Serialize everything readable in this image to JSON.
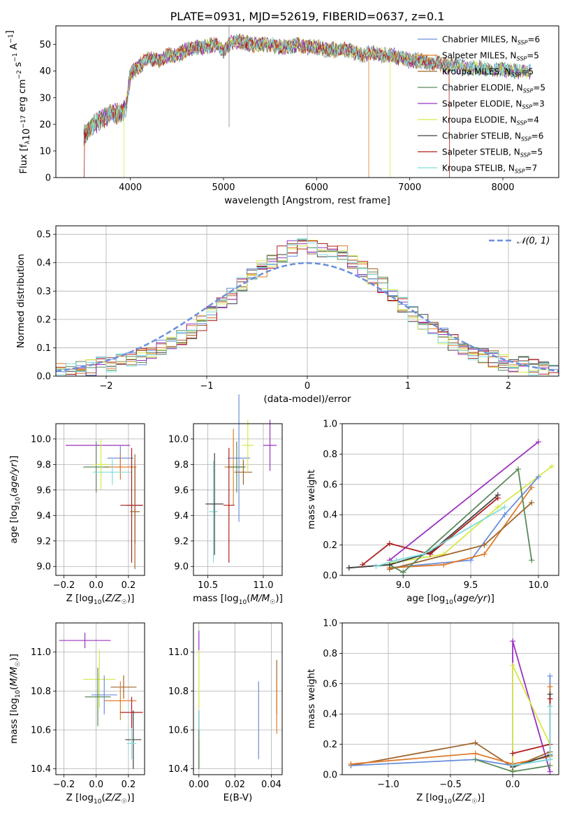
{
  "figure": {
    "title": "PLATE=0931, MJD=52619, FIBERID=0637, z=0.1"
  },
  "chart_data": [
    {
      "id": "spectrum",
      "type": "line",
      "xlabel": "wavelength [Angstrom, rest frame]",
      "ylabel": "Flux [f_λ 10^-17 erg cm^-2 s^-1 A^-1]",
      "xlim": [
        3200,
        8600
      ],
      "ylim": [
        0,
        57
      ],
      "xticks": [
        4000,
        5000,
        6000,
        7000,
        8000
      ],
      "yticks": [
        0,
        10,
        20,
        30,
        40,
        50
      ],
      "grid": false,
      "legend_position": "top-right",
      "x": [
        3500,
        3600,
        3700,
        3800,
        3900,
        3950,
        4000,
        4100,
        4200,
        4300,
        4400,
        4500,
        4600,
        4700,
        4800,
        4900,
        5000,
        5100,
        5200,
        5300,
        5400,
        5500,
        5600,
        5700,
        5800,
        5900,
        6000,
        6100,
        6200,
        6300,
        6400,
        6500,
        6600,
        6700,
        6800,
        6900,
        7000,
        7100,
        7200,
        7300,
        7400,
        7500,
        7600,
        7700,
        7800,
        7900,
        8000,
        8100,
        8200,
        8300
      ],
      "continuum": [
        16,
        20,
        22,
        24,
        24,
        26,
        39,
        42,
        45,
        44,
        46,
        46,
        48,
        49,
        49,
        50,
        48,
        51,
        51,
        50,
        50,
        50,
        49,
        49,
        50,
        49,
        49,
        48,
        48,
        48,
        47,
        46,
        47,
        46,
        46,
        45,
        44,
        44,
        43,
        43,
        42,
        42,
        41,
        41,
        41,
        40,
        41,
        40,
        40,
        40
      ],
      "series": [
        {
          "name": "Chabrier MILES, N_SSP=6",
          "color": "#6a8fdc"
        },
        {
          "name": "Salpeter MILES, N_SSP=5",
          "color": "#e07b2a"
        },
        {
          "name": "Kroupa MILES, N_SSP=5",
          "color": "#a0642a"
        },
        {
          "name": "Chabrier ELODIE, N_SSP=5",
          "color": "#5a8a5a"
        },
        {
          "name": "Salpeter ELODIE, N_SSP=3",
          "color": "#9b30c0"
        },
        {
          "name": "Kroupa ELODIE, N_SSP=4",
          "color": "#d6e84a"
        },
        {
          "name": "Chabrier STELIB, N_SSP=6",
          "color": "#404040"
        },
        {
          "name": "Salpeter STELIB, N_SSP=5",
          "color": "#b01e1e"
        },
        {
          "name": "Kroupa STELIB, N_SSP=7",
          "color": "#7fdcdc"
        }
      ]
    },
    {
      "id": "residuals",
      "type": "line",
      "xlabel": "(data-model)/error",
      "ylabel": "Normed distribution",
      "xlim": [
        -2.5,
        2.5
      ],
      "ylim": [
        0,
        0.53
      ],
      "xticks": [
        -2,
        -1,
        0,
        1,
        2
      ],
      "yticks": [
        0.0,
        0.1,
        0.2,
        0.3,
        0.4,
        0.5
      ],
      "grid": true,
      "legend_position": "top-right",
      "gaussian_label": "𝒩(0, 1)",
      "bin_edges": [
        -2.5,
        -2.4,
        -2.3,
        -2.2,
        -2.1,
        -2.0,
        -1.9,
        -1.8,
        -1.7,
        -1.6,
        -1.5,
        -1.4,
        -1.3,
        -1.2,
        -1.1,
        -1.0,
        -0.9,
        -0.8,
        -0.7,
        -0.6,
        -0.5,
        -0.4,
        -0.3,
        -0.2,
        -0.1,
        0.0,
        0.1,
        0.2,
        0.3,
        0.4,
        0.5,
        0.6,
        0.7,
        0.8,
        0.9,
        1.0,
        1.1,
        1.2,
        1.3,
        1.4,
        1.5,
        1.6,
        1.7,
        1.8,
        1.9,
        2.0,
        2.1,
        2.2,
        2.3,
        2.4,
        2.5
      ],
      "histogram": [
        0.02,
        0.02,
        0.03,
        0.03,
        0.04,
        0.04,
        0.05,
        0.06,
        0.07,
        0.08,
        0.1,
        0.12,
        0.14,
        0.16,
        0.19,
        0.22,
        0.25,
        0.28,
        0.32,
        0.36,
        0.38,
        0.41,
        0.43,
        0.45,
        0.46,
        0.46,
        0.45,
        0.44,
        0.43,
        0.41,
        0.38,
        0.35,
        0.32,
        0.28,
        0.25,
        0.22,
        0.19,
        0.16,
        0.14,
        0.12,
        0.1,
        0.08,
        0.07,
        0.06,
        0.05,
        0.04,
        0.04,
        0.03,
        0.02,
        0.02
      ]
    },
    {
      "id": "age-vs-Z",
      "type": "scatter",
      "xlabel": "Z [log10(Z/Z☉)]",
      "ylabel": "age [log10(age/yr)]",
      "xlim": [
        -0.25,
        0.3
      ],
      "ylim": [
        8.93,
        10.12
      ],
      "xticks": [
        -0.2,
        0.0,
        0.2
      ],
      "yticks": [
        9.0,
        9.2,
        9.4,
        9.6,
        9.8,
        10.0
      ],
      "grid": true,
      "points": [
        {
          "x": 0.01,
          "y": 9.95,
          "xerr": 0.2,
          "yerr": 0.0,
          "series": 4
        },
        {
          "x": 0.15,
          "y": 9.85,
          "xerr": 0.08,
          "yerr": 0.1,
          "series": 0
        },
        {
          "x": 0.15,
          "y": 9.78,
          "xerr": 0.1,
          "yerr": 0.1,
          "series": 1
        },
        {
          "x": 0.0,
          "y": 9.78,
          "xerr": 0.08,
          "yerr": 0.2,
          "series": 3
        },
        {
          "x": 0.03,
          "y": 9.8,
          "xerr": 0.05,
          "yerr": 0.2,
          "series": 5
        },
        {
          "x": 0.1,
          "y": 9.74,
          "xerr": 0.12,
          "yerr": 0.1,
          "series": 8
        },
        {
          "x": 0.24,
          "y": 9.48,
          "xerr": 0.05,
          "yerr": 0.3,
          "series": 6
        },
        {
          "x": 0.22,
          "y": 9.48,
          "xerr": 0.07,
          "yerr": 0.45,
          "series": 7
        },
        {
          "x": 0.24,
          "y": 9.43,
          "xerr": 0.03,
          "yerr": 0.45,
          "series": 2
        }
      ]
    },
    {
      "id": "age-vs-mass",
      "type": "scatter",
      "xlabel": "mass [log10(M/M☉)]",
      "ylabel": "",
      "xlim": [
        10.37,
        11.17
      ],
      "ylim": [
        8.93,
        10.12
      ],
      "xticks": [
        10.5,
        11.0
      ],
      "yticks": [
        9.0,
        9.2,
        9.4,
        9.6,
        9.8,
        10.0
      ],
      "grid": true,
      "points": [
        {
          "x": 11.06,
          "y": 9.95,
          "xerr": 0.06,
          "yerr": 0.2,
          "series": 4
        },
        {
          "x": 10.78,
          "y": 9.85,
          "xerr": 0.1,
          "yerr": 0.5,
          "series": 0
        },
        {
          "x": 10.73,
          "y": 9.78,
          "xerr": 0.08,
          "yerr": 0.3,
          "series": 1
        },
        {
          "x": 10.76,
          "y": 9.78,
          "xerr": 0.08,
          "yerr": 0.2,
          "series": 3
        },
        {
          "x": 10.86,
          "y": 9.95,
          "xerr": 0.05,
          "yerr": 0.2,
          "series": 5
        },
        {
          "x": 10.55,
          "y": 9.43,
          "xerr": 0.04,
          "yerr": 0.4,
          "series": 8
        },
        {
          "x": 10.56,
          "y": 9.49,
          "xerr": 0.08,
          "yerr": 0.4,
          "series": 6
        },
        {
          "x": 10.69,
          "y": 9.48,
          "xerr": 0.05,
          "yerr": 0.45,
          "series": 7
        },
        {
          "x": 10.82,
          "y": 9.74,
          "xerr": 0.08,
          "yerr": 0.1,
          "series": 2
        }
      ]
    },
    {
      "id": "mass-weight-vs-age",
      "type": "line",
      "xlabel": "age [log10(age/yr)]",
      "ylabel": "mass weight",
      "xlim": [
        8.55,
        10.15
      ],
      "ylim": [
        0,
        1.0
      ],
      "xticks": [
        9.0,
        9.5,
        10.0
      ],
      "yticks": [
        0.0,
        0.2,
        0.4,
        0.6,
        0.8,
        1.0
      ],
      "grid": true,
      "series": [
        {
          "series": 4,
          "x": [
            8.9,
            10.0
          ],
          "y": [
            0.1,
            0.88
          ]
        },
        {
          "series": 5,
          "x": [
            8.9,
            9.3,
            9.7,
            10.1
          ],
          "y": [
            0.08,
            0.14,
            0.45,
            0.72
          ]
        },
        {
          "series": 0,
          "x": [
            8.9,
            9.5,
            9.75,
            10.0
          ],
          "y": [
            0.05,
            0.1,
            0.4,
            0.65
          ]
        },
        {
          "series": 1,
          "x": [
            8.9,
            9.3,
            9.6,
            9.95
          ],
          "y": [
            0.05,
            0.07,
            0.14,
            0.58
          ]
        },
        {
          "series": 2,
          "x": [
            8.9,
            9.6,
            9.95
          ],
          "y": [
            0.04,
            0.2,
            0.48
          ]
        },
        {
          "series": 3,
          "x": [
            8.6,
            8.9,
            9.0,
            9.85,
            9.95
          ],
          "y": [
            0.05,
            0.07,
            0.02,
            0.7,
            0.1
          ]
        },
        {
          "series": 6,
          "x": [
            8.6,
            8.9,
            9.2,
            9.7
          ],
          "y": [
            0.05,
            0.07,
            0.15,
            0.53
          ]
        },
        {
          "series": 7,
          "x": [
            8.7,
            8.9,
            9.2,
            9.7
          ],
          "y": [
            0.07,
            0.21,
            0.14,
            0.51
          ]
        },
        {
          "series": 8,
          "x": [
            8.8,
            8.95,
            9.15,
            9.75
          ],
          "y": [
            0.06,
            0.1,
            0.14,
            0.45
          ]
        }
      ]
    },
    {
      "id": "mass-vs-Z",
      "type": "scatter",
      "xlabel": "Z [log10(Z/Z☉)]",
      "ylabel": "mass [log10(M/M☉)]",
      "xlim": [
        -0.25,
        0.3
      ],
      "ylim": [
        10.37,
        11.15
      ],
      "xticks": [
        -0.2,
        0.0,
        0.2
      ],
      "yticks": [
        10.4,
        10.6,
        10.8,
        11.0
      ],
      "grid": true,
      "points": [
        {
          "x": -0.07,
          "y": 11.06,
          "xerr": 0.16,
          "yerr": 0.04,
          "series": 4
        },
        {
          "x": 0.02,
          "y": 10.86,
          "xerr": 0.1,
          "yerr": 0.15,
          "series": 5
        },
        {
          "x": 0.17,
          "y": 10.82,
          "xerr": 0.08,
          "yerr": 0.06,
          "series": 2
        },
        {
          "x": 0.05,
          "y": 10.78,
          "xerr": 0.08,
          "yerr": 0.1,
          "series": 0
        },
        {
          "x": 0.01,
          "y": 10.77,
          "xerr": 0.08,
          "yerr": 0.15,
          "series": 3
        },
        {
          "x": 0.15,
          "y": 10.75,
          "xerr": 0.1,
          "yerr": 0.1,
          "series": 1
        },
        {
          "x": 0.22,
          "y": 10.69,
          "xerr": 0.07,
          "yerr": 0.08,
          "series": 7
        },
        {
          "x": 0.23,
          "y": 10.55,
          "xerr": 0.05,
          "yerr": 0.15,
          "series": 6
        },
        {
          "x": 0.22,
          "y": 10.53,
          "xerr": 0.03,
          "yerr": 0.08,
          "series": 8
        }
      ]
    },
    {
      "id": "mass-vs-EBV",
      "type": "scatter",
      "xlabel": "E(B-V)",
      "ylabel": "",
      "xlim": [
        -0.003,
        0.046
      ],
      "ylim": [
        10.37,
        11.15
      ],
      "xticks": [
        0.0,
        0.02,
        0.04
      ],
      "yticks": [
        10.4,
        10.6,
        10.8,
        11.0
      ],
      "grid": true,
      "points": [
        {
          "x": 0.0,
          "y": 11.06,
          "xerr": 0.0,
          "yerr": 0.05,
          "series": 4
        },
        {
          "x": 0.0,
          "y": 10.86,
          "xerr": 0.0,
          "yerr": 0.15,
          "series": 5
        },
        {
          "x": 0.0,
          "y": 10.55,
          "xerr": 0.0,
          "yerr": 0.15,
          "series": 6
        },
        {
          "x": 0.0,
          "y": 10.62,
          "xerr": 0.0,
          "yerr": 0.08,
          "series": 8
        },
        {
          "x": 0.0,
          "y": 10.5,
          "xerr": 0.0,
          "yerr": 0.1,
          "series": 3
        },
        {
          "x": 0.033,
          "y": 10.65,
          "xerr": 0.0,
          "yerr": 0.2,
          "series": 0
        },
        {
          "x": 0.043,
          "y": 10.82,
          "xerr": 0.0,
          "yerr": 0.14,
          "series": 2
        },
        {
          "x": 0.043,
          "y": 10.72,
          "xerr": 0.0,
          "yerr": 0.14,
          "series": 1
        }
      ]
    },
    {
      "id": "mass-weight-vs-Z",
      "type": "line",
      "xlabel": "Z [log10(Z/Z☉)]",
      "ylabel": "mass weight",
      "xlim": [
        -1.37,
        0.37
      ],
      "ylim": [
        0,
        1.0
      ],
      "xticks": [
        -1.0,
        -0.5,
        0.0
      ],
      "yticks": [
        0.0,
        0.2,
        0.4,
        0.6,
        0.8,
        1.0
      ],
      "grid": true,
      "series": [
        {
          "series": 4,
          "x": [
            0.0,
            0.0,
            0.3
          ],
          "y": [
            0.03,
            0.88,
            0.02
          ]
        },
        {
          "series": 5,
          "x": [
            0.0,
            0.0,
            0.3
          ],
          "y": [
            0.03,
            0.72,
            0.2
          ]
        },
        {
          "series": 2,
          "x": [
            -1.3,
            -0.3,
            0.0,
            0.3
          ],
          "y": [
            0.06,
            0.21,
            0.05,
            0.15
          ]
        },
        {
          "series": 0,
          "x": [
            -1.3,
            -0.3,
            0.0,
            0.3,
            0.3
          ],
          "y": [
            0.06,
            0.1,
            0.06,
            0.1,
            0.65
          ]
        },
        {
          "series": 1,
          "x": [
            -1.3,
            -0.3,
            0.0,
            0.3,
            0.3
          ],
          "y": [
            0.07,
            0.14,
            0.07,
            0.12,
            0.58
          ]
        },
        {
          "series": 3,
          "x": [
            -0.3,
            0.0,
            0.3
          ],
          "y": [
            0.1,
            0.02,
            0.06
          ]
        },
        {
          "series": 6,
          "x": [
            0.0,
            0.3,
            0.3
          ],
          "y": [
            0.05,
            0.13,
            0.53
          ]
        },
        {
          "series": 7,
          "x": [
            0.0,
            0.3,
            0.3
          ],
          "y": [
            0.14,
            0.2,
            0.5
          ]
        },
        {
          "series": 8,
          "x": [
            0.0,
            0.3,
            0.3
          ],
          "y": [
            0.06,
            0.1,
            0.45
          ]
        }
      ]
    }
  ]
}
